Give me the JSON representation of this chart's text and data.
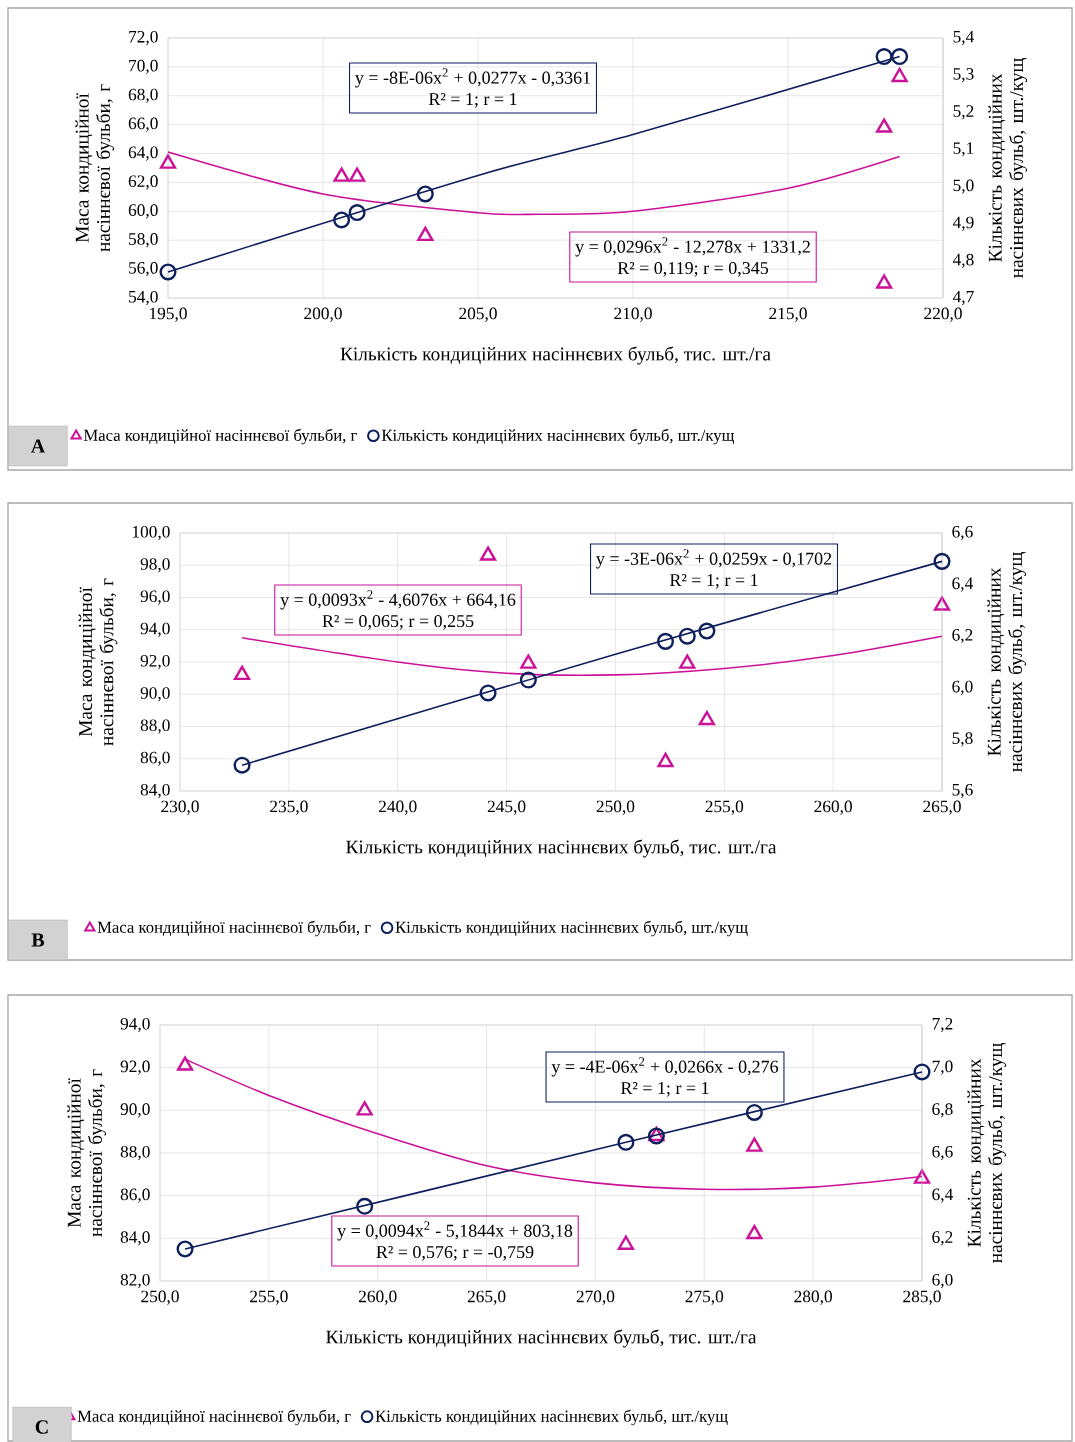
{
  "chart_data": [
    {
      "type": "scatter",
      "title": "A",
      "xlabel": "Кількість кондиційних насіннєвих бульб, тис. шт./га",
      "ylabel": "Маса кондиційної насіннєвої бульби, г",
      "y2label": "Кількість кондиційних насіннєвих бульб, шт./кущ",
      "annotations": [
        "y = -8E-06x$^{2}$ + 0,0277x - 0,3361",
        "R² = 1; r = 1",
        "y = 0,0296x$^{2}$ - 12,278x + 1331,2",
        "R² = 0,119; r = 0,345"
      ],
      "xlim": [
        195,
        220
      ],
      "xticks": [
        {
          "value": 195,
          "label": "195,0"
        },
        {
          "value": 200,
          "label": "200,0"
        },
        {
          "value": 205,
          "label": "205,0"
        },
        {
          "value": 210,
          "label": "210,0"
        },
        {
          "value": 215,
          "label": "215,0"
        },
        {
          "value": 220,
          "label": "220,0"
        }
      ],
      "ylim": [
        54,
        72
      ],
      "yticks": [
        {
          "value": 54,
          "label": "54,0"
        },
        {
          "value": 56,
          "label": "56,0"
        },
        {
          "value": 58,
          "label": "58,0"
        },
        {
          "value": 60,
          "label": "60,0"
        },
        {
          "value": 62,
          "label": "62,0"
        },
        {
          "value": 64,
          "label": "64,0"
        },
        {
          "value": 66,
          "label": "66,0"
        },
        {
          "value": 68,
          "label": "68,0"
        },
        {
          "value": 70,
          "label": "70,0"
        },
        {
          "value": 72,
          "label": "72,0"
        }
      ],
      "y2lim": [
        4.7,
        5.4
      ],
      "y2ticks": [
        {
          "value": 4.7,
          "label": "4,7"
        },
        {
          "value": 4.8,
          "label": "4,8"
        },
        {
          "value": 4.9,
          "label": "4,9"
        },
        {
          "value": 5.0,
          "label": "5,0"
        },
        {
          "value": 5.1,
          "label": "5,1"
        },
        {
          "value": 5.2,
          "label": "5,2"
        },
        {
          "value": 5.3,
          "label": "5,3"
        },
        {
          "value": 5.4,
          "label": "5,4"
        }
      ],
      "grid": true,
      "legend": "bottom",
      "series": [
        {
          "name": "Маса кондиційної насіннєвої бульби, г",
          "color": "#cc1199",
          "marker": "triangle",
          "x": [
            195.0,
            200.6,
            201.1,
            203.3,
            218.1,
            218.1,
            218.6
          ],
          "values": [
            63.3,
            62.4,
            62.4,
            58.3,
            65.8,
            55.0,
            69.3
          ]
        },
        {
          "name": "Кількість кондиційних насіннєвих бульб, шт./кущ",
          "color": "#0d1f5c",
          "marker": "circle",
          "axis": "y2",
          "x": [
            195.0,
            200.6,
            201.1,
            203.3,
            218.1,
            218.6
          ],
          "values": [
            4.77,
            4.91,
            4.93,
            4.98,
            5.35,
            5.35
          ]
        },
        {
          "color": "#cc1199",
          "type": "line",
          "x": [
            195.0,
            200.0,
            205.0,
            207.0,
            210.0,
            215.0,
            218.6
          ],
          "values": [
            64.1,
            61.2,
            59.9,
            59.8,
            60.0,
            61.6,
            63.8
          ]
        },
        {
          "color": "#0d1f5c",
          "type": "line",
          "axis": "y2",
          "x": [
            195.0,
            205.0,
            210.0,
            218.6
          ],
          "values": [
            4.77,
            5.03,
            5.14,
            5.35
          ]
        }
      ]
    },
    {
      "type": "scatter",
      "title": "B",
      "xlabel": "Кількість кондиційних насіннєвих бульб, тис. шт./га",
      "ylabel": "Маса кондиційної насіннєвої бульби, г",
      "y2label": "Кількість кондиційних насіннєвих бульб, шт./кущ",
      "annotations": [
        "y = -3E-06x$^{2}$ + 0,0259x - 0,1702",
        "R² = 1; r = 1",
        "y = 0,0093x$^{2}$ - 4,6076x + 664,16",
        "R² = 0,065; r = 0,255"
      ],
      "xlim": [
        230,
        265
      ],
      "xticks": [
        {
          "value": 230,
          "label": "230,0"
        },
        {
          "value": 235,
          "label": "235,0"
        },
        {
          "value": 240,
          "label": "240,0"
        },
        {
          "value": 245,
          "label": "245,0"
        },
        {
          "value": 250,
          "label": "250,0"
        },
        {
          "value": 255,
          "label": "255,0"
        },
        {
          "value": 260,
          "label": "260,0"
        },
        {
          "value": 265,
          "label": "265,0"
        }
      ],
      "ylim": [
        84,
        100
      ],
      "yticks": [
        {
          "value": 84,
          "label": "84,0"
        },
        {
          "value": 86,
          "label": "86,0"
        },
        {
          "value": 88,
          "label": "88,0"
        },
        {
          "value": 90,
          "label": "90,0"
        },
        {
          "value": 92,
          "label": "92,0"
        },
        {
          "value": 94,
          "label": "94,0"
        },
        {
          "value": 96,
          "label": "96,0"
        },
        {
          "value": 98,
          "label": "98,0"
        },
        {
          "value": 100,
          "label": "100,0"
        }
      ],
      "y2lim": [
        5.6,
        6.6
      ],
      "y2ticks": [
        {
          "value": 5.6,
          "label": "5,6"
        },
        {
          "value": 5.8,
          "label": "5,8"
        },
        {
          "value": 6.0,
          "label": "6,0"
        },
        {
          "value": 6.2,
          "label": "6,2"
        },
        {
          "value": 6.4,
          "label": "6,4"
        },
        {
          "value": 6.6,
          "label": "6,6"
        }
      ],
      "grid": true,
      "legend": "bottom",
      "series": [
        {
          "name": "Маса кондиційної насіннєвої бульби, г",
          "color": "#cc1199",
          "marker": "triangle",
          "x": [
            232.85,
            244.15,
            246.0,
            252.3,
            253.3,
            254.2,
            265.0
          ],
          "values": [
            91.2,
            98.6,
            91.9,
            85.8,
            91.9,
            88.4,
            95.5
          ]
        },
        {
          "name": "Кількість кондиційних насіннєвих бульб, шт./кущ",
          "color": "#0d1f5c",
          "marker": "circle",
          "axis": "y2",
          "x": [
            232.85,
            244.15,
            246.0,
            252.3,
            253.3,
            254.2,
            265.0
          ],
          "values": [
            5.7,
            5.98,
            6.03,
            6.18,
            6.2,
            6.22,
            6.49
          ]
        },
        {
          "color": "#cc1199",
          "type": "line",
          "x": [
            232.85,
            240.0,
            245.0,
            250.0,
            255.0,
            260.0,
            265.0
          ],
          "values": [
            93.5,
            92.0,
            91.3,
            91.2,
            91.6,
            92.4,
            93.6
          ]
        },
        {
          "color": "#0d1f5c",
          "type": "line",
          "axis": "y2",
          "x": [
            232.85,
            250.0,
            265.0
          ],
          "values": [
            5.7,
            6.13,
            6.49
          ]
        }
      ]
    },
    {
      "type": "scatter",
      "title": "C",
      "xlabel": "Кількість кондиційних насіннєвих бульб, тис. шт./га",
      "ylabel": "Маса кондиційної насіннєвої бульби, г",
      "y2label": "Кількість кондиційних насіннєвих бульб, шт./кущ",
      "annotations": [
        "y = -4E-06x$^{2}$ + 0,0266x - 0,276",
        "R² = 1; r = 1",
        "y = 0,0094x$^{2}$ - 5,1844x + 803,18",
        "R² = 0,576; r = -0,759"
      ],
      "xlim": [
        250,
        285
      ],
      "xticks": [
        {
          "value": 250,
          "label": "250,0"
        },
        {
          "value": 255,
          "label": "255,0"
        },
        {
          "value": 260,
          "label": "260,0"
        },
        {
          "value": 265,
          "label": "265,0"
        },
        {
          "value": 270,
          "label": "270,0"
        },
        {
          "value": 275,
          "label": "275,0"
        },
        {
          "value": 280,
          "label": "280,0"
        },
        {
          "value": 285,
          "label": "285,0"
        }
      ],
      "ylim": [
        82,
        94
      ],
      "yticks": [
        {
          "value": 82,
          "label": "82,0"
        },
        {
          "value": 84,
          "label": "84,0"
        },
        {
          "value": 86,
          "label": "86,0"
        },
        {
          "value": 88,
          "label": "88,0"
        },
        {
          "value": 90,
          "label": "90,0"
        },
        {
          "value": 92,
          "label": "92,0"
        },
        {
          "value": 94,
          "label": "94,0"
        }
      ],
      "y2lim": [
        6.0,
        7.2
      ],
      "y2ticks": [
        {
          "value": 6.0,
          "label": "6,0"
        },
        {
          "value": 6.2,
          "label": "6,2"
        },
        {
          "value": 6.4,
          "label": "6,4"
        },
        {
          "value": 6.6,
          "label": "6,6"
        },
        {
          "value": 6.8,
          "label": "6,8"
        },
        {
          "value": 7.0,
          "label": "7,0"
        },
        {
          "value": 7.2,
          "label": "7,2"
        }
      ],
      "grid": true,
      "legend": "bottom",
      "series": [
        {
          "name": "Маса кондиційної насіннєвої бульби, г",
          "color": "#cc1199",
          "marker": "triangle",
          "x": [
            251.15,
            259.4,
            271.4,
            272.8,
            277.3,
            277.3,
            285.0
          ],
          "values": [
            92.1,
            90.0,
            83.7,
            88.8,
            88.3,
            84.2,
            86.8
          ]
        },
        {
          "name": "Кількість кондиційних насіннєвих бульб, шт./кущ",
          "color": "#0d1f5c",
          "marker": "circle",
          "axis": "y2",
          "x": [
            251.15,
            259.4,
            271.4,
            272.8,
            277.3,
            285.0
          ],
          "values": [
            6.15,
            6.35,
            6.65,
            6.68,
            6.79,
            6.98
          ]
        },
        {
          "color": "#cc1199",
          "type": "line",
          "x": [
            251.15,
            255.0,
            260.0,
            265.0,
            270.0,
            275.0,
            280.0,
            285.0
          ],
          "values": [
            92.4,
            90.7,
            88.9,
            87.4,
            86.6,
            86.3,
            86.4,
            86.9
          ]
        },
        {
          "color": "#0d1f5c",
          "type": "line",
          "axis": "y2",
          "x": [
            251.15,
            271.4,
            285.0
          ],
          "values": [
            6.15,
            6.65,
            6.98
          ]
        }
      ]
    }
  ]
}
